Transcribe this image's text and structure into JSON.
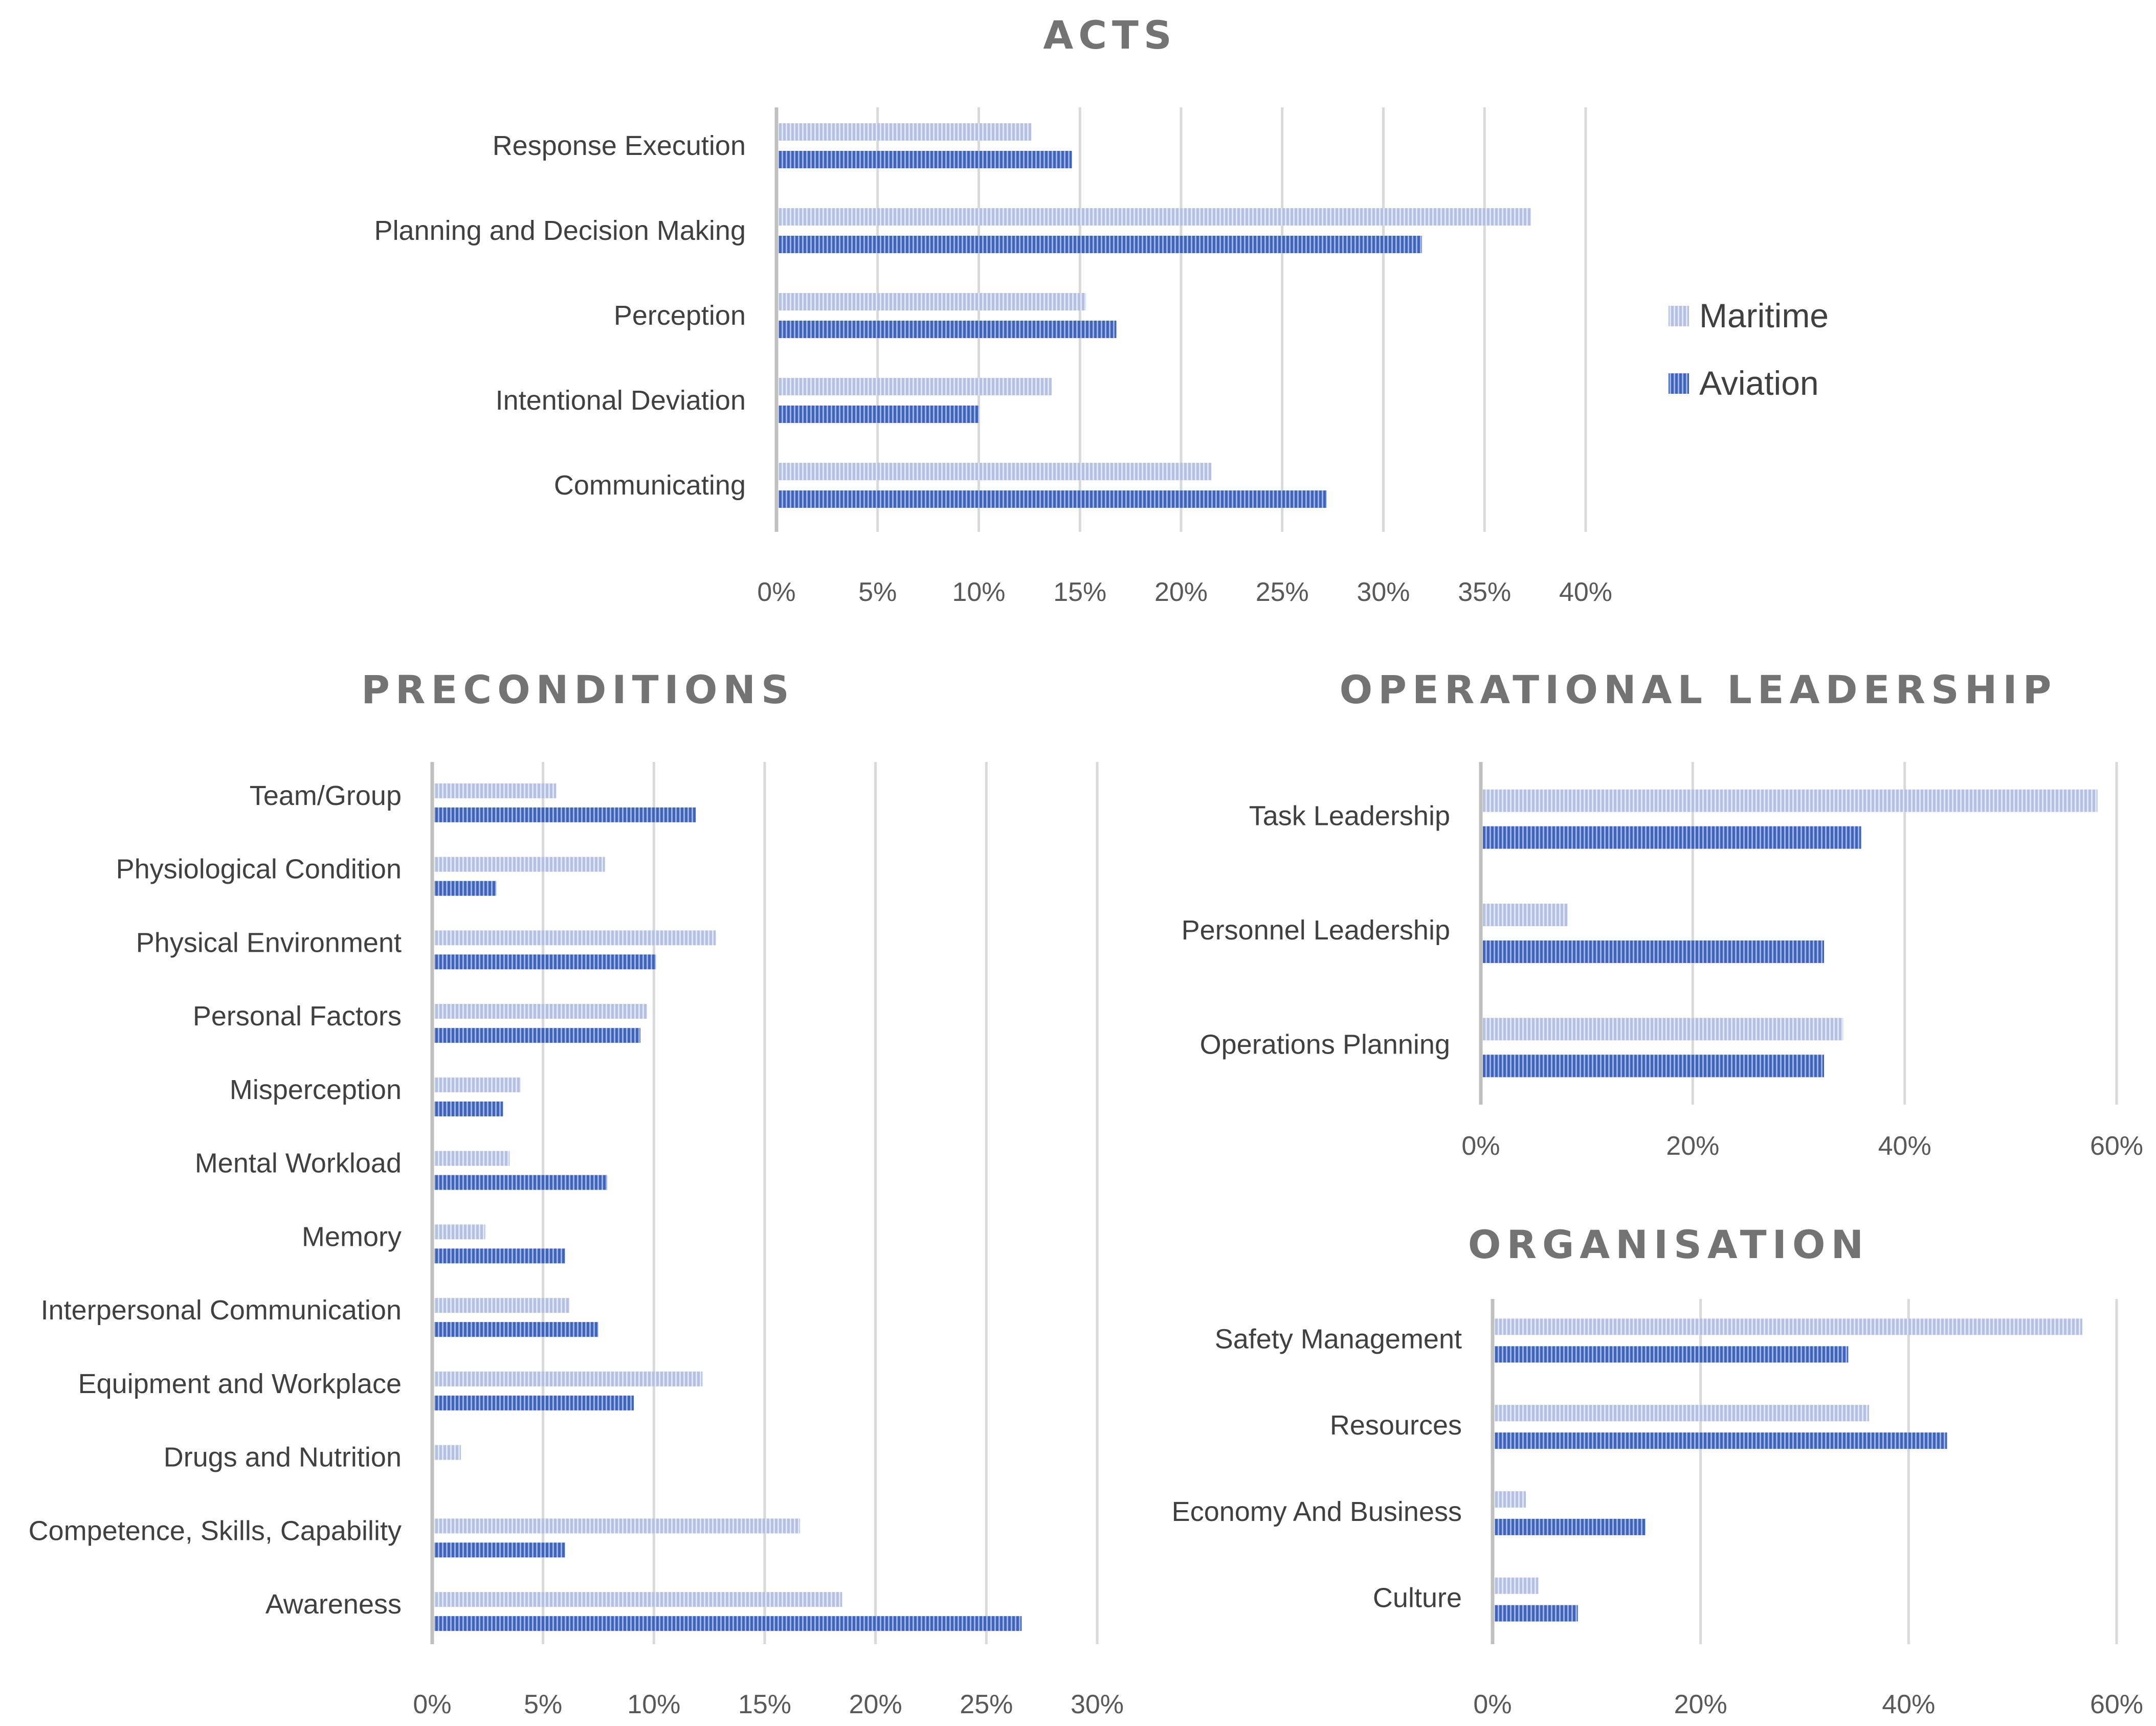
{
  "colors": {
    "maritime": "#b4c1e4",
    "aviation": "#3d64c0"
  },
  "legend": [
    {
      "name": "Maritime"
    },
    {
      "name": "Aviation"
    }
  ],
  "chart_data": [
    {
      "id": "acts",
      "type": "bar",
      "orientation": "horizontal",
      "title": "ACTS",
      "categories": [
        "Response Execution",
        "Planning and Decision Making",
        "Perception",
        "Intentional Deviation",
        "Communicating"
      ],
      "series": [
        {
          "name": "Maritime",
          "values": [
            12.5,
            37.2,
            15.2,
            13.5,
            21.4
          ]
        },
        {
          "name": "Aviation",
          "values": [
            14.5,
            31.8,
            16.7,
            9.9,
            27.1
          ]
        }
      ],
      "xlim": [
        0,
        40
      ],
      "xticks": [
        "0%",
        "5%",
        "10%",
        "15%",
        "20%",
        "25%",
        "30%",
        "35%",
        "40%"
      ]
    },
    {
      "id": "preconditions",
      "type": "bar",
      "orientation": "horizontal",
      "title": "PRECONDITIONS",
      "categories": [
        "Team/Group",
        "Physiological Condition",
        "Physical Environment",
        "Personal Factors",
        "Misperception",
        "Mental Workload",
        "Memory",
        "Interpersonal Communication",
        "Equipment and Workplace",
        "Drugs and Nutrition",
        "Competence, Skills, Capability",
        "Awareness"
      ],
      "series": [
        {
          "name": "Maritime",
          "values": [
            5.5,
            7.7,
            12.7,
            9.6,
            3.9,
            3.4,
            2.3,
            6.1,
            12.1,
            1.2,
            16.5,
            18.4
          ]
        },
        {
          "name": "Aviation",
          "values": [
            11.8,
            2.8,
            10.0,
            9.3,
            3.1,
            7.8,
            5.9,
            7.4,
            9.0,
            0,
            5.9,
            26.5
          ]
        }
      ],
      "xlim": [
        0,
        30
      ],
      "xticks": [
        "0%",
        "5%",
        "10%",
        "15%",
        "20%",
        "25%",
        "30%"
      ]
    },
    {
      "id": "operational-leadership",
      "type": "bar",
      "orientation": "horizontal",
      "title": "OPERATIONAL LEADERSHIP",
      "categories": [
        "Task Leadership",
        "Personnel Leadership",
        "Operations Planning"
      ],
      "series": [
        {
          "name": "Maritime",
          "values": [
            58,
            8,
            34
          ]
        },
        {
          "name": "Aviation",
          "values": [
            35.7,
            32.2,
            32.2
          ]
        }
      ],
      "xlim": [
        0,
        60
      ],
      "xticks": [
        "0%",
        "20%",
        "40%",
        "60%"
      ]
    },
    {
      "id": "organisation",
      "type": "bar",
      "orientation": "horizontal",
      "title": "ORGANISATION",
      "categories": [
        "Safety Management",
        "Resources",
        "Economy And Business",
        "Culture"
      ],
      "series": [
        {
          "name": "Maritime",
          "values": [
            56.5,
            36,
            3,
            4.2
          ]
        },
        {
          "name": "Aviation",
          "values": [
            34,
            43.5,
            14.5,
            8
          ]
        }
      ],
      "xlim": [
        0,
        60
      ],
      "xticks": [
        "0%",
        "20%",
        "40%",
        "60%"
      ]
    }
  ]
}
